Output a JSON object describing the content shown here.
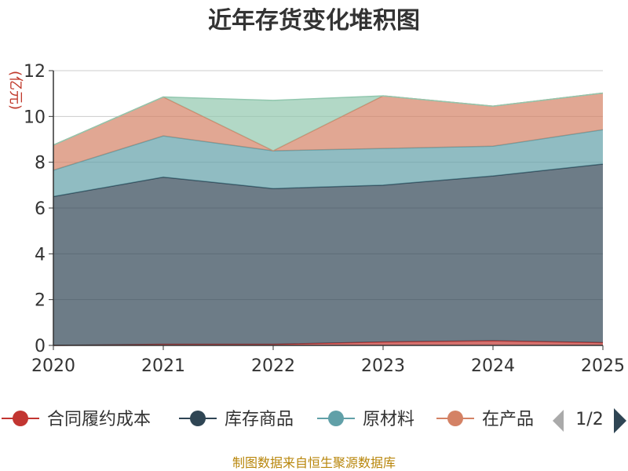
{
  "chart_data": {
    "type": "area",
    "title": "近年存货变化堆积图",
    "y_unit": "(亿元)",
    "x": [
      "2020",
      "2021",
      "2022",
      "2023",
      "2024",
      "2025"
    ],
    "ylim": [
      0,
      12
    ],
    "yticks": [
      0,
      2,
      4,
      6,
      8,
      10,
      12
    ],
    "grid": true,
    "stacked": true,
    "legend_position": "bottom",
    "series": [
      {
        "name": "合同履约成本",
        "color": "#c23531",
        "values": [
          0.0,
          0.05,
          0.05,
          0.15,
          0.2,
          0.12
        ]
      },
      {
        "name": "库存商品",
        "color": "#2f4554",
        "values": [
          6.5,
          7.3,
          6.8,
          6.85,
          7.2,
          7.8
        ]
      },
      {
        "name": "原材料",
        "color": "#61a0a8",
        "values": [
          1.15,
          1.8,
          1.65,
          1.6,
          1.3,
          1.5
        ]
      },
      {
        "name": "在产品",
        "color": "#d48265",
        "values": [
          1.1,
          1.7,
          0.0,
          2.3,
          1.75,
          1.6
        ]
      },
      {
        "name": "",
        "color": "#91c7ae",
        "values": [
          0.0,
          0.0,
          2.2,
          0.0,
          0.0,
          0.0
        ]
      }
    ]
  },
  "legend": {
    "items": [
      {
        "label": "合同履约成本",
        "color": "#c23531"
      },
      {
        "label": "库存商品",
        "color": "#2f4554"
      },
      {
        "label": "原材料",
        "color": "#61a0a8"
      },
      {
        "label": "在产品",
        "color": "#d48265"
      }
    ],
    "page_indicator": "1/2"
  },
  "source_note": "制图数据来自恒生聚源数据库"
}
